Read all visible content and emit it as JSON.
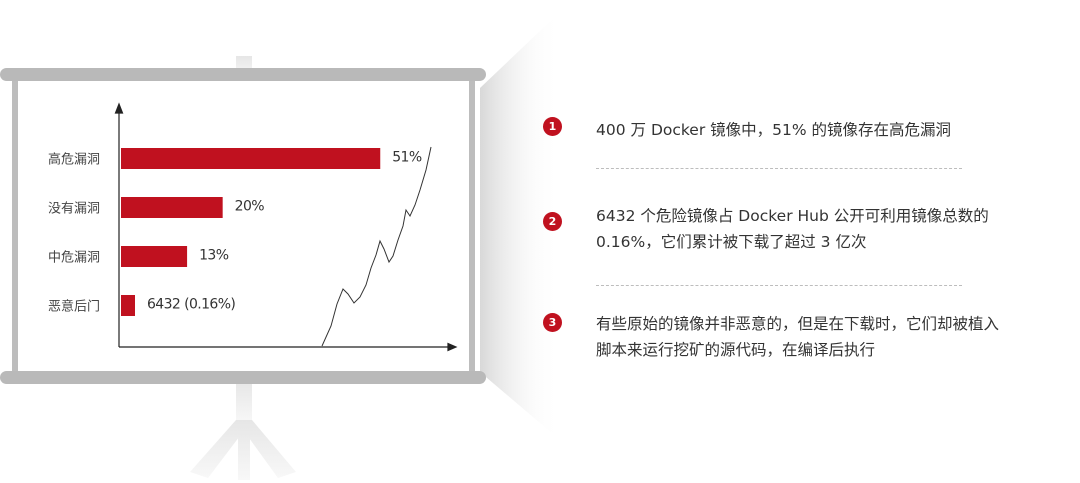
{
  "colors": {
    "accent": "#c0111f",
    "frame": "#b9b9b9"
  },
  "chart_data": {
    "type": "bar",
    "orientation": "horizontal",
    "categories": [
      "高危漏洞",
      "没有漏洞",
      "中危漏洞",
      "恶意后门"
    ],
    "values": [
      51,
      20,
      13,
      0.16
    ],
    "value_labels": [
      "51%",
      "20%",
      "13%",
      "6432 (0.16%)"
    ],
    "unit": "%",
    "xlim": [
      0,
      60
    ],
    "grid": false,
    "legend": "none"
  },
  "points": [
    {
      "number": "1",
      "text": "400 万 Docker 镜像中，51% 的镜像存在高危漏洞"
    },
    {
      "number": "2",
      "text": "6432 个危险镜像占 Docker Hub 公开可利用镜像总数的\n0.16%，它们累计被下载了超过 3 亿次"
    },
    {
      "number": "3",
      "text": "有些原始的镜像并非恶意的，但是在下载时，它们却被植入\n脚本来运行挖矿的源代码，在编译后执行"
    }
  ]
}
